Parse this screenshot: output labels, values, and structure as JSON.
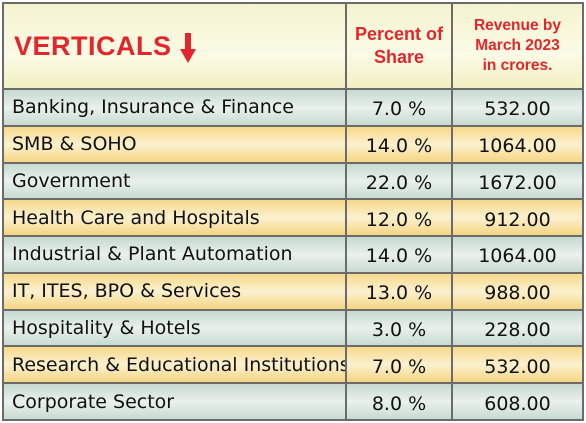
{
  "chart_data": {
    "type": "table",
    "columns": [
      "VERTICALS",
      "Percent of Share",
      "Revenue by March 2023 in crores."
    ],
    "header": {
      "verticals": "VERTICALS",
      "share_line1": "Percent of",
      "share_line2": "Share",
      "rev_line1": "Revenue by",
      "rev_line2": "March 2023",
      "rev_line3": "in crores."
    },
    "rows": [
      {
        "name": "Banking, Insurance & Finance",
        "share": "7.0 %",
        "revenue": "532.00"
      },
      {
        "name": "SMB & SOHO",
        "share": "14.0 %",
        "revenue": "1064.00"
      },
      {
        "name": "Government",
        "share": "22.0 %",
        "revenue": "1672.00"
      },
      {
        "name": "Health Care and Hospitals",
        "share": "12.0 %",
        "revenue": "912.00"
      },
      {
        "name": "Industrial & Plant Automation",
        "share": "14.0 %",
        "revenue": "1064.00"
      },
      {
        "name": "IT, ITES, BPO & Services",
        "share": "13.0 %",
        "revenue": "988.00"
      },
      {
        "name": "Hospitality & Hotels",
        "share": "3.0 %",
        "revenue": "228.00"
      },
      {
        "name": "Research & Educational Institutions",
        "share": "7.0 %",
        "revenue": "532.00"
      },
      {
        "name": "Corporate Sector",
        "share": "8.0 %",
        "revenue": "608.00"
      }
    ]
  },
  "icons": {
    "header_arrow": "arrow-down-icon"
  },
  "colors": {
    "header_text": "#e3262b",
    "row_green": "#d8e7df",
    "row_yellow": "#f9e6ad",
    "border": "#6b6b6b"
  }
}
